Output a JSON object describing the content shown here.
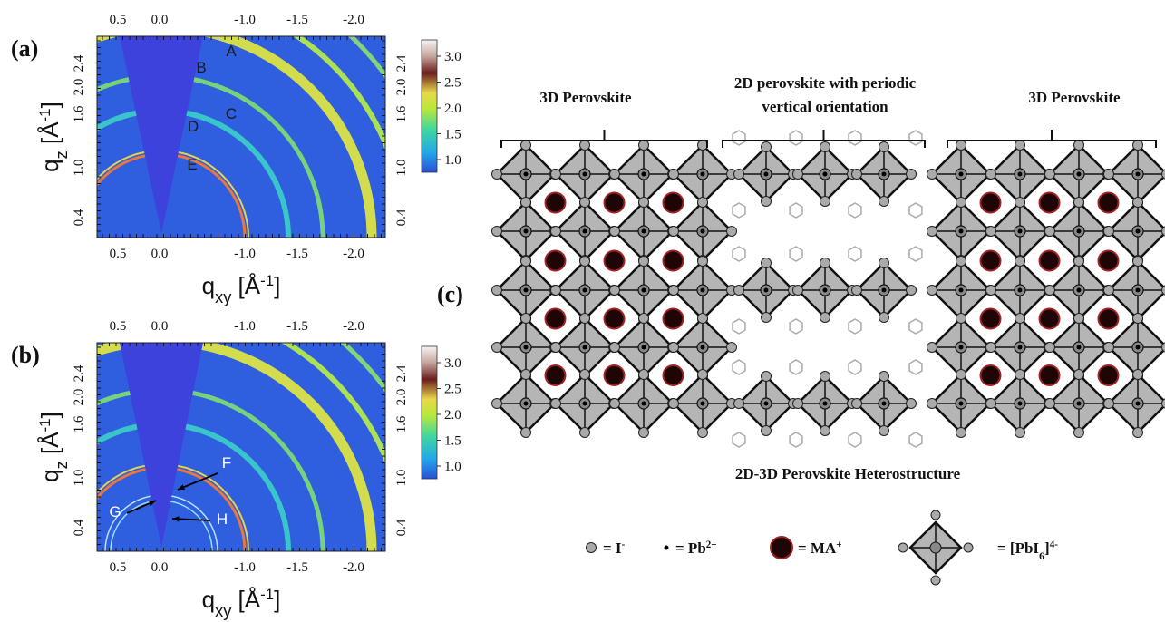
{
  "panels": [
    {
      "label": "(a)",
      "x_ticks_top": [
        "0.5",
        "0.0",
        "-1.0",
        "-1.5",
        "-2.0"
      ],
      "x_ticks_bottom": [
        "0.5",
        "0.0",
        "-1.0",
        "-1.5",
        "-2.0"
      ],
      "y_ticks_left": [
        "2.4",
        "2.0",
        "1.6",
        "1.0",
        "0.4"
      ],
      "y_ticks_right": [
        "2.4",
        "2.0",
        "1.6",
        "1.0",
        "0.4"
      ],
      "colorbar_ticks": [
        "3.0",
        "2.5",
        "2.0",
        "1.5",
        "1.0"
      ],
      "markers": [
        "A",
        "B",
        "C",
        "D",
        "E"
      ],
      "x_axis_label": {
        "base": "q",
        "sub": "xy",
        "unit": " [Å",
        "sup": "-1",
        "end": "]"
      },
      "y_axis_label": {
        "base": "q",
        "sub": "z",
        "unit": " [Å",
        "sup": "-1",
        "end": "]"
      }
    },
    {
      "label": "(b)",
      "x_ticks_top": [
        "0.5",
        "0.0",
        "-1.0",
        "-1.5",
        "-2.0"
      ],
      "x_ticks_bottom": [
        "0.5",
        "0.0",
        "-1.0",
        "-1.5",
        "-2.0"
      ],
      "y_ticks_left": [
        "2.4",
        "2.0",
        "1.6",
        "1.0",
        "0.4"
      ],
      "y_ticks_right": [
        "2.4",
        "2.0",
        "1.6",
        "1.0",
        "0.4"
      ],
      "colorbar_ticks": [
        "3.0",
        "2.5",
        "2.0",
        "1.5",
        "1.0"
      ],
      "markers": [
        "F",
        "G",
        "H"
      ],
      "x_axis_label": {
        "base": "q",
        "sub": "xy",
        "unit": " [Å",
        "sup": "-1",
        "end": "]"
      },
      "y_axis_label": {
        "base": "q",
        "sub": "z",
        "unit": " [Å",
        "sup": "-1",
        "end": "]"
      }
    }
  ],
  "schematic": {
    "label": "(c)",
    "left_title": "3D Perovskite",
    "middle_title": [
      "2D perovskite with periodic",
      "vertical orientation"
    ],
    "right_title": "3D Perovskite",
    "caption": "2D-3D Perovskite Heterostructure",
    "legend": [
      {
        "text": "= I",
        "sup": "-"
      },
      {
        "text": "= Pb",
        "sup": "2+"
      },
      {
        "text": "= MA",
        "sup": "+"
      },
      {
        "text": "= [PbI",
        "sub": "6",
        "text2": "]",
        "sup": "4-"
      }
    ]
  }
}
